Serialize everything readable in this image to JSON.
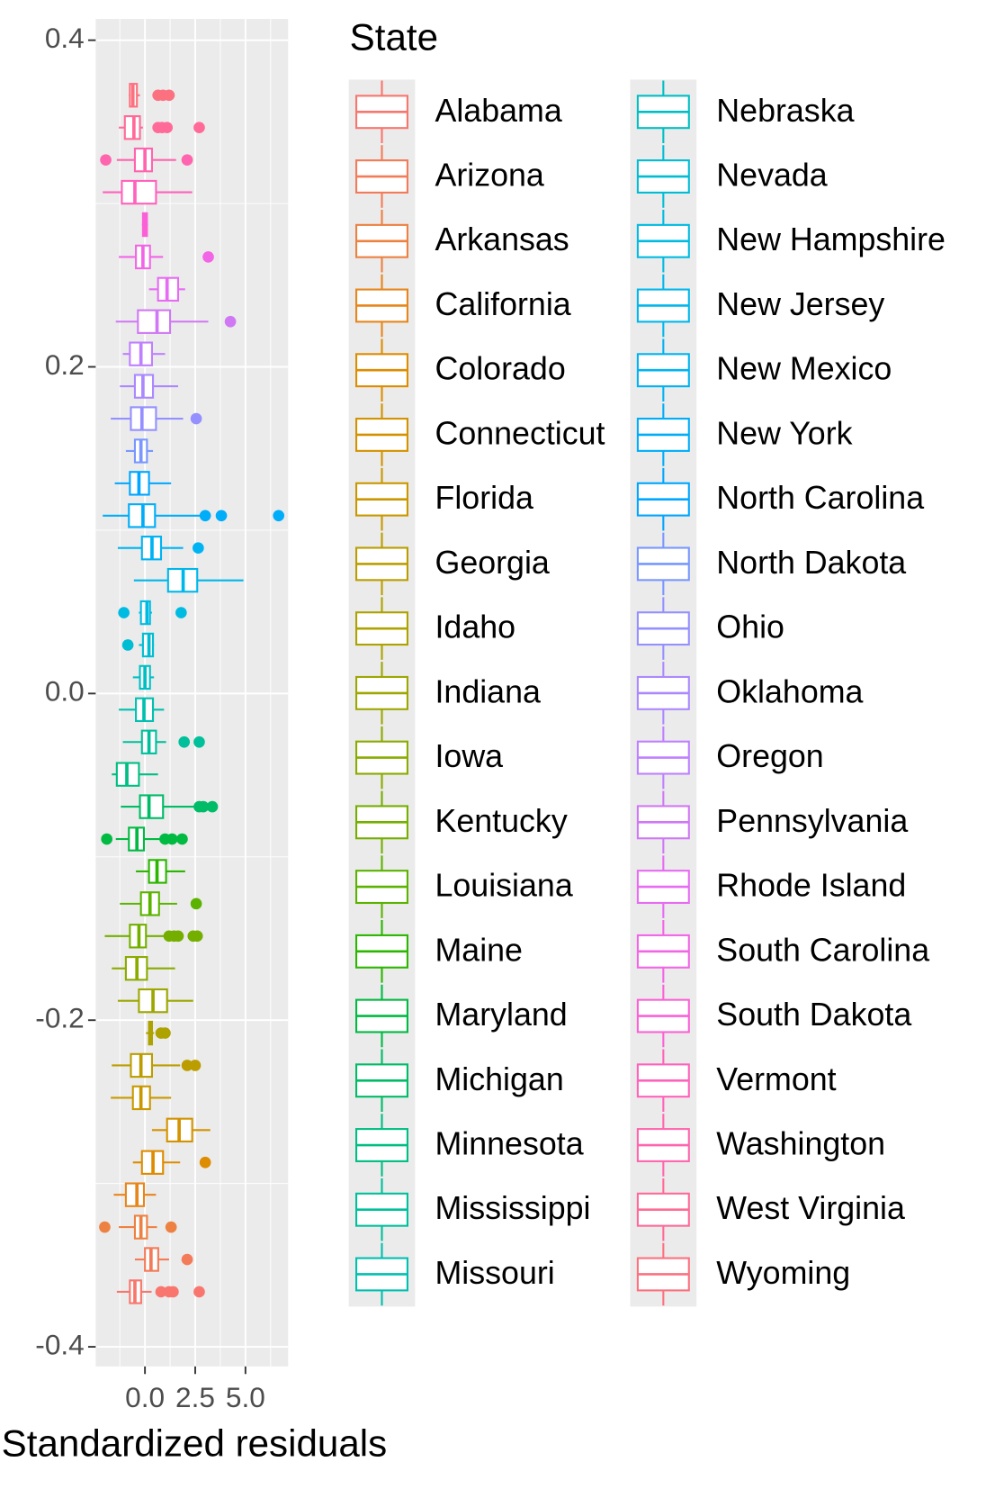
{
  "chart_data": {
    "type": "boxplot",
    "x_label": "Standardized residuals",
    "legend_title": "State",
    "xlim": [
      -2.45,
      7.12
    ],
    "xticks": [
      {
        "value": 0,
        "label": "0.0"
      },
      2.5,
      {
        "value": 5,
        "label": "5.0"
      }
    ],
    "ylim": [
      -0.412,
      0.413
    ],
    "yticks": [
      {
        "value": -0.4,
        "label": "-0.4"
      },
      {
        "value": -0.2,
        "label": "-0.2"
      },
      {
        "value": 0,
        "label": "0.0"
      },
      0.2,
      0.4
    ],
    "grid": true,
    "series": [
      {
        "name": "Alabama",
        "color": "#F8766D",
        "y": -0.3663,
        "stats": [
          -1.4,
          -0.75,
          -0.5,
          -0.19,
          0.33
        ],
        "outliers": [
          0.8,
          1.2,
          1.4,
          2.7
        ]
      },
      {
        "name": "Arizona",
        "color": "#F37B59",
        "y": -0.3465,
        "stats": [
          -0.5,
          0,
          0.3,
          0.66,
          1.2
        ],
        "outliers": [
          2.1
        ]
      },
      {
        "name": "Arkansas",
        "color": "#ED8141",
        "y": -0.3267,
        "stats": [
          -1.3,
          -0.5,
          -0.2,
          0.1,
          0.6
        ],
        "outliers": [
          -2.0,
          1.3
        ]
      },
      {
        "name": "California",
        "color": "#E7861B",
        "y": -0.3069,
        "stats": [
          -1.55,
          -0.95,
          -0.4,
          -0.05,
          0.55
        ],
        "outliers": []
      },
      {
        "name": "Colorado",
        "color": "#DE8C00",
        "y": -0.2871,
        "stats": [
          -0.6,
          -0.15,
          0.4,
          0.9,
          1.75
        ],
        "outliers": [
          3.0
        ]
      },
      {
        "name": "Connecticut",
        "color": "#D49200",
        "y": -0.2673,
        "stats": [
          0.35,
          1.1,
          1.7,
          2.35,
          3.25
        ],
        "outliers": []
      },
      {
        "name": "Florida",
        "color": "#C99800",
        "y": -0.2475,
        "stats": [
          -1.7,
          -0.6,
          -0.2,
          0.25,
          1.3
        ],
        "outliers": []
      },
      {
        "name": "Georgia",
        "color": "#BB9D00",
        "y": -0.2277,
        "stats": [
          -1.65,
          -0.7,
          -0.2,
          0.35,
          1.75
        ],
        "outliers": [
          2.1,
          2.5
        ]
      },
      {
        "name": "Idaho",
        "color": "#ADA200",
        "y": -0.2079,
        "stats": [
          0.05,
          0.2,
          0.25,
          0.35,
          0.45
        ],
        "outliers": [
          0.8,
          1.0
        ]
      },
      {
        "name": "Indiana",
        "color": "#9DA700",
        "y": -0.1881,
        "stats": [
          -1.35,
          -0.3,
          0.4,
          1.1,
          2.4
        ],
        "outliers": []
      },
      {
        "name": "Iowa",
        "color": "#8AAB00",
        "y": -0.1683,
        "stats": [
          -1.65,
          -0.95,
          -0.4,
          0.1,
          1.5
        ],
        "outliers": []
      },
      {
        "name": "Kentucky",
        "color": "#74AF00",
        "y": -0.1485,
        "stats": [
          -2.0,
          -0.75,
          -0.3,
          0.05,
          0.95
        ],
        "outliers": [
          1.2,
          1.45,
          1.65,
          2.4,
          2.6
        ]
      },
      {
        "name": "Louisiana",
        "color": "#5BB300",
        "y": -0.1287,
        "stats": [
          -1.25,
          -0.2,
          0.25,
          0.7,
          1.6
        ],
        "outliers": [
          2.55
        ]
      },
      {
        "name": "Maine",
        "color": "#2BB600",
        "y": -0.1089,
        "stats": [
          -0.45,
          0.2,
          0.6,
          1.05,
          2.0
        ],
        "outliers": []
      },
      {
        "name": "Maryland",
        "color": "#00BA42",
        "y": -0.0891,
        "stats": [
          -1.45,
          -0.8,
          -0.4,
          -0.05,
          0.9
        ],
        "outliers": [
          -1.9,
          1.0,
          1.35,
          1.85
        ]
      },
      {
        "name": "Michigan",
        "color": "#00BC66",
        "y": -0.0693,
        "stats": [
          -1.2,
          -0.25,
          0.2,
          0.9,
          2.45
        ],
        "outliers": [
          2.7,
          2.9,
          3.35
        ]
      },
      {
        "name": "Minnesota",
        "color": "#00BE83",
        "y": -0.0495,
        "stats": [
          -1.65,
          -1.4,
          -0.9,
          -0.3,
          0.65
        ],
        "outliers": []
      },
      {
        "name": "Mississippi",
        "color": "#00C09B",
        "y": -0.0297,
        "stats": [
          -1.1,
          -0.15,
          0.2,
          0.55,
          1.05
        ],
        "outliers": [
          1.95,
          2.7
        ]
      },
      {
        "name": "Missouri",
        "color": "#00C0AF",
        "y": -0.0099,
        "stats": [
          -1.3,
          -0.45,
          -0.05,
          0.4,
          0.95
        ],
        "outliers": []
      },
      {
        "name": "Nebraska",
        "color": "#00BFC4",
        "y": 0.0099,
        "stats": [
          -0.6,
          -0.25,
          0,
          0.25,
          0.45
        ],
        "outliers": []
      },
      {
        "name": "Nevada",
        "color": "#00BDD4",
        "y": 0.0297,
        "stats": [
          -0.3,
          -0.1,
          0.2,
          0.4,
          0.45
        ],
        "outliers": [
          -0.85
        ]
      },
      {
        "name": "New Hampshire",
        "color": "#00BBE1",
        "y": 0.0495,
        "stats": [
          -0.3,
          -0.2,
          0.1,
          0.25,
          0.35
        ],
        "outliers": [
          -1.05,
          1.8
        ]
      },
      {
        "name": "New Jersey",
        "color": "#00B7EB",
        "y": 0.0693,
        "stats": [
          -0.55,
          1.15,
          1.9,
          2.6,
          4.9
        ],
        "outliers": []
      },
      {
        "name": "New Mexico",
        "color": "#00B3F2",
        "y": 0.0891,
        "stats": [
          -1.35,
          -0.15,
          0.35,
          0.8,
          1.9
        ],
        "outliers": [
          2.65
        ]
      },
      {
        "name": "New York",
        "color": "#00ADF9",
        "y": 0.1089,
        "stats": [
          -2.1,
          -0.8,
          -0.1,
          0.5,
          2.8
        ],
        "outliers": [
          3.0,
          3.8,
          6.65
        ]
      },
      {
        "name": "North Carolina",
        "color": "#00A6FF",
        "y": 0.1287,
        "stats": [
          -1.5,
          -0.75,
          -0.3,
          0.2,
          1.3
        ],
        "outliers": []
      },
      {
        "name": "North Dakota",
        "color": "#7997FF",
        "y": 0.1485,
        "stats": [
          -0.95,
          -0.5,
          -0.2,
          0.1,
          0.4
        ],
        "outliers": []
      },
      {
        "name": "Ohio",
        "color": "#9590FF",
        "y": 0.1683,
        "stats": [
          -1.7,
          -0.7,
          -0.15,
          0.55,
          1.9
        ],
        "outliers": [
          2.55
        ]
      },
      {
        "name": "Oklahoma",
        "color": "#AC88FF",
        "y": 0.1881,
        "stats": [
          -1.25,
          -0.5,
          -0.1,
          0.4,
          1.65
        ],
        "outliers": []
      },
      {
        "name": "Oregon",
        "color": "#BF80FF",
        "y": 0.2079,
        "stats": [
          -1.1,
          -0.75,
          -0.2,
          0.35,
          1.0
        ],
        "outliers": []
      },
      {
        "name": "Pennsylvania",
        "color": "#D078F4",
        "y": 0.2277,
        "stats": [
          -1.45,
          -0.35,
          0.6,
          1.25,
          3.15
        ],
        "outliers": [
          4.25
        ]
      },
      {
        "name": "Rhode Island",
        "color": "#E76BF3",
        "y": 0.2475,
        "stats": [
          0.2,
          0.65,
          1.1,
          1.65,
          2.0
        ],
        "outliers": []
      },
      {
        "name": "South Carolina",
        "color": "#F265E6",
        "y": 0.2673,
        "stats": [
          -1.3,
          -0.45,
          -0.1,
          0.25,
          0.9
        ],
        "outliers": [
          3.15
        ]
      },
      {
        "name": "South Dakota",
        "color": "#FB61D7",
        "y": 0.2871,
        "stats": [
          -0.15,
          -0.1,
          0,
          0.1,
          0.15
        ],
        "outliers": []
      },
      {
        "name": "Vermont",
        "color": "#FF62BC",
        "y": 0.3069,
        "stats": [
          -2.1,
          -1.15,
          -0.5,
          0.55,
          2.35
        ],
        "outliers": []
      },
      {
        "name": "Washington",
        "color": "#FF65AE",
        "y": 0.3267,
        "stats": [
          -1.4,
          -0.5,
          0,
          0.35,
          1.55
        ],
        "outliers": [
          -1.95,
          2.1
        ]
      },
      {
        "name": "West Virginia",
        "color": "#FF6A98",
        "y": 0.3465,
        "stats": [
          -1.3,
          -1.0,
          -0.55,
          -0.25,
          -0.1
        ],
        "outliers": [
          0.65,
          0.85,
          1.1,
          2.7
        ]
      },
      {
        "name": "Wyoming",
        "color": "#FC717F",
        "y": 0.3663,
        "stats": [
          -0.8,
          -0.75,
          -0.6,
          -0.4,
          -0.25
        ],
        "outliers": [
          0.65,
          0.9,
          1.2
        ]
      }
    ]
  }
}
